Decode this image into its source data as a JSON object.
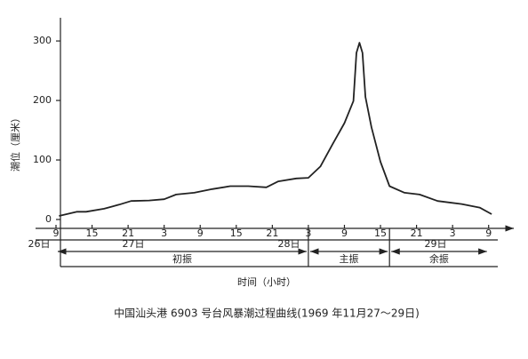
{
  "chart_data": {
    "type": "line",
    "title": "中国汕头港 6903 号台风暴潮过程曲线(1969 年11月27～29日)",
    "y_label": "潮位（厘米）",
    "x_label": "时间（小时）",
    "x": [
      9.5,
      12.5,
      14,
      17,
      19.5,
      21.5,
      24.5,
      27,
      29,
      32,
      35,
      38,
      41,
      44,
      46,
      49,
      51,
      53,
      55,
      57,
      58.5,
      59,
      59.5,
      60,
      60.5,
      61.5,
      63,
      64.5,
      67,
      69.5,
      72.5,
      76.5,
      79.5,
      81.5
    ],
    "series": [
      {
        "name": "潮位",
        "color": "#222222",
        "values": [
          6,
          13,
          13,
          18,
          25,
          31,
          32,
          34,
          42,
          45,
          51,
          56,
          56,
          54,
          64,
          69,
          70,
          89,
          126,
          162,
          199,
          280,
          297,
          280,
          206,
          155,
          97,
          56,
          45,
          42,
          31,
          26,
          20,
          9
        ]
      }
    ],
    "xlim": [
      9,
      84
    ],
    "ylim": [
      0,
      330
    ],
    "xticks": [
      9,
      15,
      21,
      {
        "value": 27,
        "label": "3"
      },
      {
        "value": 33,
        "label": "9"
      },
      {
        "value": 39,
        "label": "15"
      },
      {
        "value": 45,
        "label": "21"
      },
      {
        "value": 51,
        "label": "3"
      },
      {
        "value": 57,
        "label": "9"
      },
      {
        "value": 63,
        "label": "15"
      },
      {
        "value": 69,
        "label": "21"
      },
      {
        "value": 75,
        "label": "3"
      },
      {
        "value": 81,
        "label": "9"
      }
    ],
    "yticks": [
      0,
      100,
      200,
      300
    ],
    "days": [
      "26日",
      "27日",
      "28日",
      "29日"
    ],
    "phases": [
      "初振",
      "主振",
      "余振"
    ],
    "phase_bounds": [
      9,
      51,
      64.5,
      81
    ]
  }
}
